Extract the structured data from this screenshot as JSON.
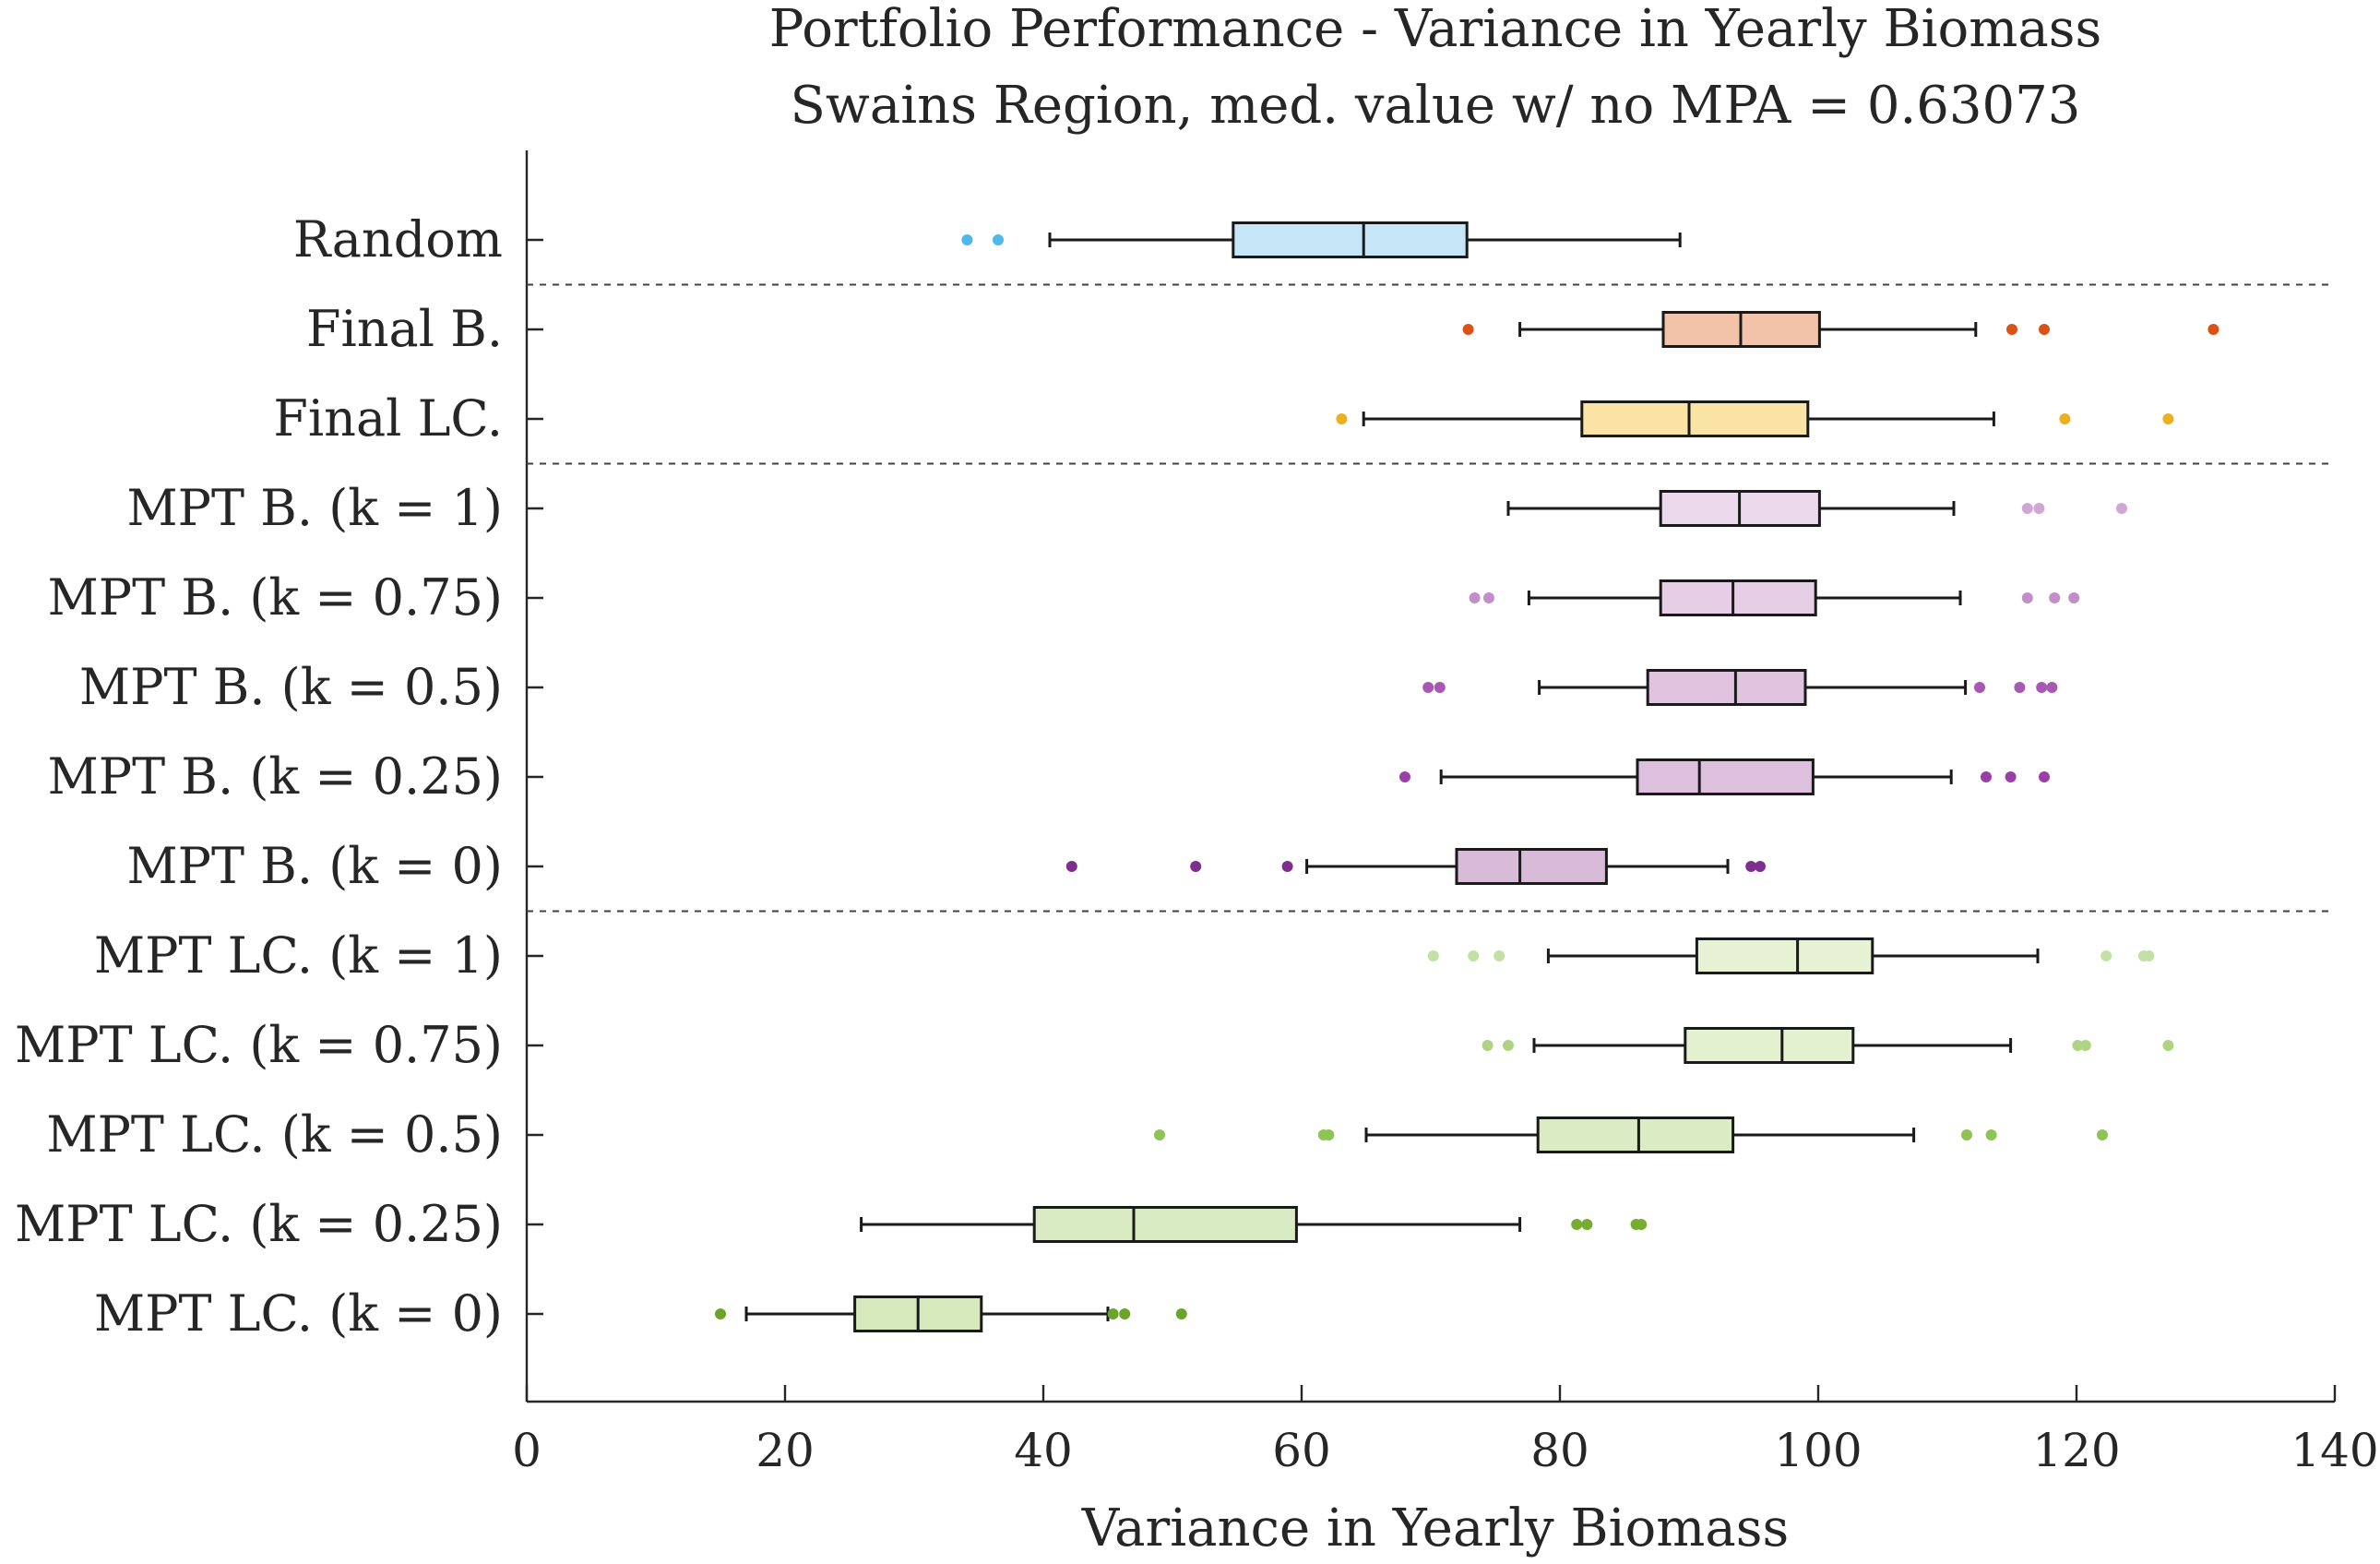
{
  "chart_data": {
    "type": "box",
    "orientation": "horizontal",
    "title": "Portfolio Performance - Variance in Yearly Biomass",
    "subtitle": "Swains Region, med. value w/ no MPA = 0.63073",
    "xlabel": "Variance in Yearly Biomass",
    "ylabel": "",
    "xlim": [
      0,
      140
    ],
    "xticks": [
      0,
      20,
      40,
      60,
      80,
      100,
      120,
      140
    ],
    "grid": false,
    "legend": "none",
    "separators_after": [
      "Random",
      "Final LC.",
      "MPT B. (k = 0)"
    ],
    "categories": [
      "Random",
      "Final B.",
      "Final LC.",
      "MPT B. (k = 1)",
      "MPT B. (k = 0.75)",
      "MPT B. (k = 0.5)",
      "MPT B. (k = 0.25)",
      "MPT B. (k = 0)",
      "MPT LC. (k = 1)",
      "MPT LC. (k = 0.75)",
      "MPT LC. (k = 0.5)",
      "MPT LC. (k = 0.25)",
      "MPT LC. (k = 0)"
    ],
    "boxes": [
      {
        "whisker_low": 40.5,
        "q1": 54.7,
        "median": 64.8,
        "q3": 72.8,
        "whisker_high": 89.3,
        "outliers": [
          34.1,
          36.5
        ],
        "fill": "#c6e6f8",
        "outlier_color": "#4db8ea"
      },
      {
        "whisker_low": 76.9,
        "q1": 88.0,
        "median": 94.0,
        "q3": 100.1,
        "whisker_high": 112.2,
        "outliers": [
          72.9,
          115.0,
          117.5,
          130.6
        ],
        "fill": "#f2c3a8",
        "outlier_color": "#d95319"
      },
      {
        "whisker_low": 64.8,
        "q1": 81.7,
        "median": 90.0,
        "q3": 99.2,
        "whisker_high": 113.6,
        "outliers": [
          63.1,
          119.1,
          127.1
        ],
        "fill": "#fbe3a6",
        "outlier_color": "#edb120"
      },
      {
        "whisker_low": 76.0,
        "q1": 87.8,
        "median": 93.9,
        "q3": 100.1,
        "whisker_high": 110.5,
        "outliers": [
          116.2,
          117.1,
          123.5
        ],
        "fill": "#ecd9ec",
        "outlier_color": "#d1a5d6"
      },
      {
        "whisker_low": 77.6,
        "q1": 87.8,
        "median": 93.4,
        "q3": 99.8,
        "whisker_high": 111.0,
        "outliers": [
          73.4,
          74.5,
          116.2,
          118.3,
          119.8
        ],
        "fill": "#e6cfe6",
        "outlier_color": "#c38ccb"
      },
      {
        "whisker_low": 78.4,
        "q1": 86.8,
        "median": 93.6,
        "q3": 99.0,
        "whisker_high": 111.4,
        "outliers": [
          69.8,
          70.7,
          112.5,
          115.6,
          117.3,
          118.1
        ],
        "fill": "#dfc3df",
        "outlier_color": "#a758b3"
      },
      {
        "whisker_low": 70.8,
        "q1": 86.0,
        "median": 90.8,
        "q3": 99.6,
        "whisker_high": 110.3,
        "outliers": [
          68.0,
          113.0,
          114.9,
          117.5
        ],
        "fill": "#dcc0dd",
        "outlier_color": "#9b3fa8"
      },
      {
        "whisker_low": 60.4,
        "q1": 72.0,
        "median": 76.9,
        "q3": 83.6,
        "whisker_high": 93.0,
        "outliers": [
          42.2,
          51.8,
          58.9,
          94.8,
          95.5
        ],
        "fill": "#d8bbd9",
        "outlier_color": "#7e2f8e"
      },
      {
        "whisker_low": 79.1,
        "q1": 90.6,
        "median": 98.4,
        "q3": 104.2,
        "whisker_high": 117.0,
        "outliers": [
          70.2,
          73.3,
          75.3,
          122.3,
          125.2,
          125.6
        ],
        "fill": "#e7f2d5",
        "outlier_color": "#c3e0a5"
      },
      {
        "whisker_low": 78.0,
        "q1": 89.7,
        "median": 97.2,
        "q3": 102.7,
        "whisker_high": 114.9,
        "outliers": [
          74.4,
          76.0,
          120.1,
          120.7,
          127.1
        ],
        "fill": "#e4f1d0",
        "outlier_color": "#aed481"
      },
      {
        "whisker_low": 65.0,
        "q1": 78.3,
        "median": 86.1,
        "q3": 93.4,
        "whisker_high": 107.4,
        "outliers": [
          49.0,
          61.7,
          62.1,
          111.5,
          113.4,
          122.0
        ],
        "fill": "#dbecc4",
        "outlier_color": "#8ec453"
      },
      {
        "whisker_low": 25.9,
        "q1": 39.3,
        "median": 47.0,
        "q3": 59.6,
        "whisker_high": 76.9,
        "outliers": [
          81.3,
          82.1,
          85.9,
          86.3
        ],
        "fill": "#d9ebc2",
        "outlier_color": "#77ac30"
      },
      {
        "whisker_low": 17.0,
        "q1": 25.4,
        "median": 30.3,
        "q3": 35.2,
        "whisker_high": 45.0,
        "outliers": [
          15.0,
          45.4,
          46.3,
          50.7
        ],
        "fill": "#d5e9bd",
        "outlier_color": "#6aa529"
      }
    ]
  }
}
